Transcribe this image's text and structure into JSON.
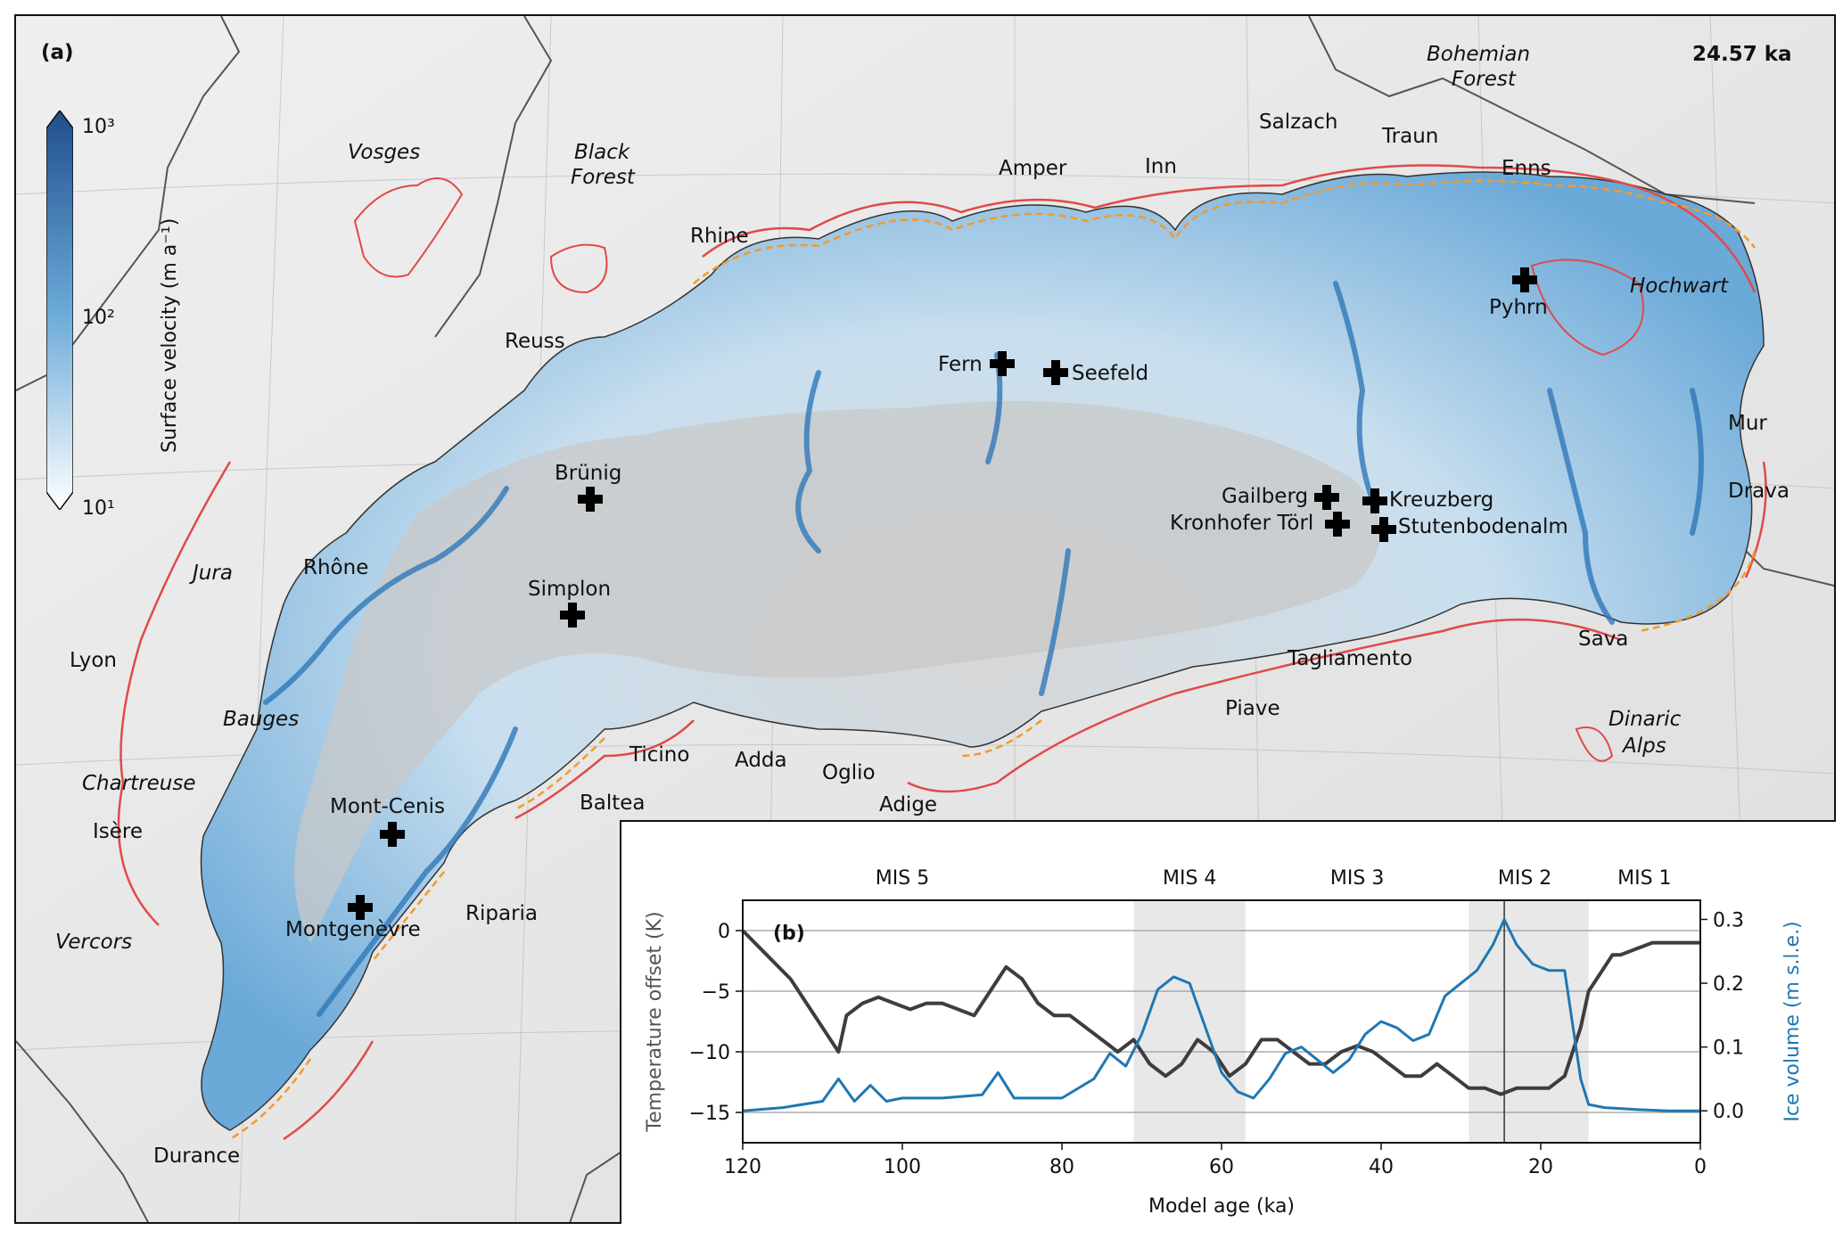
{
  "panel_a": {
    "label": "(a)",
    "time_label": "24.57 ka",
    "colorbar": {
      "title": "Surface velocity (m a⁻¹)",
      "ticks": [
        "10³",
        "10²",
        "10¹"
      ],
      "colors": {
        "low": "#ffffff",
        "high": "#1f4e8c"
      }
    },
    "regions": [
      {
        "name": "Vosges"
      },
      {
        "name": "Black"
      },
      {
        "name": "Forest"
      },
      {
        "name": "Bohemian"
      },
      {
        "name": "Forest"
      },
      {
        "name": "Hochwart"
      },
      {
        "name": "Jura"
      },
      {
        "name": "Bauges"
      },
      {
        "name": "Chartreuse"
      },
      {
        "name": "Vercors"
      },
      {
        "name": "Dinaric"
      },
      {
        "name": "Alps"
      }
    ],
    "rivers": [
      "Rhine",
      "Reuss",
      "Amper",
      "Inn",
      "Salzach",
      "Traun",
      "Enns",
      "Rhône",
      "Lyon",
      "Isère",
      "Durance",
      "Ticino",
      "Adda",
      "Oglio",
      "Adige",
      "Baltea",
      "Riparia",
      "Piave",
      "Tagliamento",
      "Sava",
      "Mur",
      "Drava"
    ],
    "passes": [
      "Fern",
      "Seefeld",
      "Pyhrn",
      "Brünig",
      "Simplon",
      "Gailberg",
      "Kreuzberg",
      "Kronhofer Törl",
      "Stutenbodenalm",
      "Mont-Cenis",
      "Montgenèvre"
    ],
    "colors": {
      "ice_blue": "#3a86c4",
      "red_outline": "#e04a4a",
      "orange_outline": "#f39a2b"
    }
  },
  "panel_b": {
    "label": "(b)",
    "stages": [
      "MIS 5",
      "MIS 4",
      "MIS 3",
      "MIS 2",
      "MIS 1"
    ],
    "xlabel": "Model age (ka)",
    "ylabel_left": "Temperature offset (K)",
    "ylabel_right": "Ice volume (m s.l.e.)",
    "colors": {
      "temperature": "#3d3d3d",
      "ice": "#1f77b4",
      "shade": "#e8e8e8"
    }
  },
  "chart_data": {
    "type": "line",
    "xlabel": "Model age (ka)",
    "xlim": [
      120,
      0
    ],
    "x_ticks": [
      120,
      100,
      80,
      60,
      40,
      20,
      0
    ],
    "y_left": {
      "label": "Temperature offset (K)",
      "ylim": [
        -17.5,
        2.5
      ],
      "ticks": [
        0,
        -5,
        -10,
        -15
      ],
      "tick_labels": [
        "0",
        "−5",
        "−10",
        "−15"
      ]
    },
    "y_right": {
      "label": "Ice volume (m s.l.e.)",
      "ylim": [
        -0.05,
        0.33
      ],
      "ticks": [
        0.0,
        0.1,
        0.2,
        0.3
      ],
      "tick_labels": [
        "0.0",
        "0.1",
        "0.2",
        "0.3"
      ]
    },
    "shaded_intervals": [
      [
        71,
        57
      ],
      [
        29,
        14
      ]
    ],
    "vertical_marker": 24.57,
    "stage_labels": [
      {
        "text": "MIS 5",
        "x": 100
      },
      {
        "text": "MIS 4",
        "x": 64
      },
      {
        "text": "MIS 3",
        "x": 43
      },
      {
        "text": "MIS 2",
        "x": 22
      },
      {
        "text": "MIS 1",
        "x": 7
      }
    ],
    "series": [
      {
        "axis": "left",
        "x": [
          120,
          117,
          114,
          112,
          110,
          108,
          107,
          105,
          103,
          101,
          99,
          97,
          95,
          93,
          91,
          89,
          87,
          85,
          83,
          81,
          79,
          77,
          75,
          73,
          71,
          69,
          67,
          65,
          63,
          61,
          59,
          57,
          55,
          53,
          51,
          49,
          47,
          45,
          43,
          41,
          39,
          37,
          35,
          33,
          31,
          29,
          27,
          25,
          23,
          21,
          19,
          17,
          15,
          14,
          13,
          12,
          11,
          10,
          8,
          6,
          4,
          2,
          0
        ],
        "y": [
          0,
          -2,
          -4,
          -6,
          -8,
          -10,
          -7,
          -6,
          -5.5,
          -6,
          -6.5,
          -6,
          -6,
          -6.5,
          -7,
          -5,
          -3,
          -4,
          -6,
          -7,
          -7,
          -8,
          -9,
          -10,
          -9,
          -11,
          -12,
          -11,
          -9,
          -10,
          -12,
          -11,
          -9,
          -9,
          -10,
          -11,
          -11,
          -10,
          -9.5,
          -10,
          -11,
          -12,
          -12,
          -11,
          -12,
          -13,
          -13,
          -13.5,
          -13,
          -13,
          -13,
          -12,
          -8,
          -5,
          -4,
          -3,
          -2,
          -2,
          -1.5,
          -1,
          -1,
          -1,
          -1
        ]
      },
      {
        "axis": "right",
        "x": [
          120,
          115,
          110,
          108,
          106,
          104,
          102,
          100,
          95,
          90,
          88,
          86,
          84,
          80,
          76,
          74,
          72,
          70,
          68,
          66,
          64,
          62,
          60,
          58,
          56,
          54,
          52,
          50,
          48,
          46,
          44,
          42,
          40,
          38,
          36,
          34,
          32,
          30,
          28,
          26,
          24.57,
          23,
          21,
          19,
          17,
          15,
          14,
          12,
          8,
          4,
          0
        ],
        "y": [
          0,
          0.005,
          0.015,
          0.05,
          0.015,
          0.04,
          0.015,
          0.02,
          0.02,
          0.025,
          0.06,
          0.02,
          0.02,
          0.02,
          0.05,
          0.09,
          0.07,
          0.12,
          0.19,
          0.21,
          0.2,
          0.13,
          0.06,
          0.03,
          0.02,
          0.05,
          0.09,
          0.1,
          0.08,
          0.06,
          0.08,
          0.12,
          0.14,
          0.13,
          0.11,
          0.12,
          0.18,
          0.2,
          0.22,
          0.26,
          0.3,
          0.26,
          0.23,
          0.22,
          0.22,
          0.05,
          0.01,
          0.005,
          0.002,
          0.0,
          0.0
        ]
      }
    ]
  }
}
